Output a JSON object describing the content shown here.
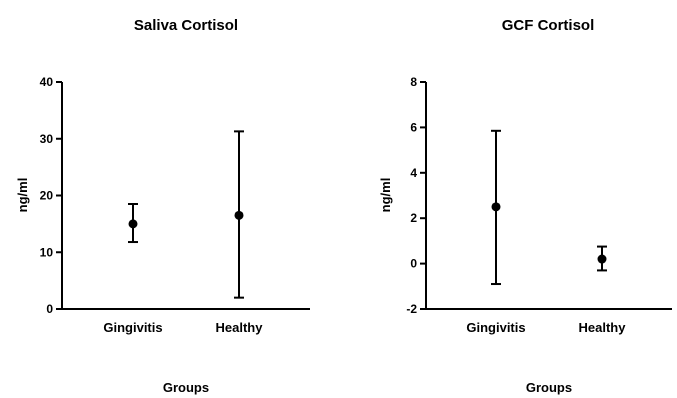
{
  "chart_data": [
    {
      "type": "scatter",
      "title": "Saliva Cortisol",
      "xlabel": "Groups",
      "ylabel": "ng/ml",
      "categories": [
        "Gingivitis",
        "Healthy"
      ],
      "ylim": [
        0,
        40
      ],
      "yticks": [
        "0",
        "10",
        "20",
        "30",
        "40"
      ],
      "ytick_values": [
        0,
        10,
        20,
        30,
        40
      ],
      "series": [
        {
          "values": [
            15.0,
            16.5
          ],
          "error_low": [
            11.8,
            2.0
          ],
          "error_high": [
            18.5,
            31.3
          ]
        }
      ],
      "grid": false,
      "legend": "none"
    },
    {
      "type": "scatter",
      "title": "GCF Cortisol",
      "xlabel": "Groups",
      "ylabel": "ng/ml",
      "categories": [
        "Gingivitis",
        "Healthy"
      ],
      "ylim": [
        -2,
        8
      ],
      "yticks": [
        "-2",
        "0",
        "2",
        "4",
        "6",
        "8"
      ],
      "ytick_values": [
        -2,
        0,
        2,
        4,
        6,
        8
      ],
      "series": [
        {
          "values": [
            2.5,
            0.2
          ],
          "error_low": [
            -0.9,
            -0.3
          ],
          "error_high": [
            5.85,
            0.75
          ]
        }
      ],
      "grid": false,
      "legend": "none"
    }
  ]
}
